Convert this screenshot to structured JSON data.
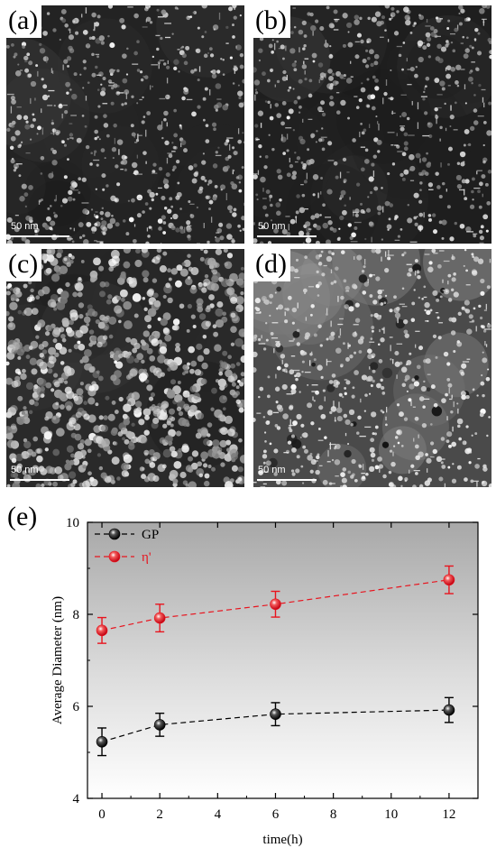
{
  "panels": [
    {
      "label": "(a)",
      "scale_text": "50 nm"
    },
    {
      "label": "(b)",
      "scale_text": "50 nm"
    },
    {
      "label": "(c)",
      "scale_text": "50 nm"
    },
    {
      "label": "(d)",
      "scale_text": "50 nm"
    }
  ],
  "chart_label": "(e)",
  "chart_data": {
    "type": "line",
    "title": "",
    "xlabel": "time(h)",
    "ylabel": "Average Diameter (nm)",
    "x": [
      0,
      2,
      6,
      12
    ],
    "xlim": [
      -0.5,
      13.0
    ],
    "ylim": [
      4,
      10
    ],
    "xticks": [
      "0",
      "2",
      "4",
      "6",
      "8",
      "10",
      "12"
    ],
    "yticks": [
      "4",
      "6",
      "8",
      "10"
    ],
    "legend_position": "top-left",
    "grid": false,
    "background": "vertical gradient, gray at top to white at bottom",
    "series": [
      {
        "name": "GP",
        "color": "#000000",
        "values": [
          5.23,
          5.6,
          5.83,
          5.92
        ],
        "errors": [
          0.3,
          0.25,
          0.25,
          0.27
        ]
      },
      {
        "name": "η'",
        "color": "#e8141e",
        "values": [
          7.65,
          7.92,
          8.22,
          8.75
        ],
        "errors": [
          0.28,
          0.3,
          0.28,
          0.3
        ]
      }
    ]
  }
}
